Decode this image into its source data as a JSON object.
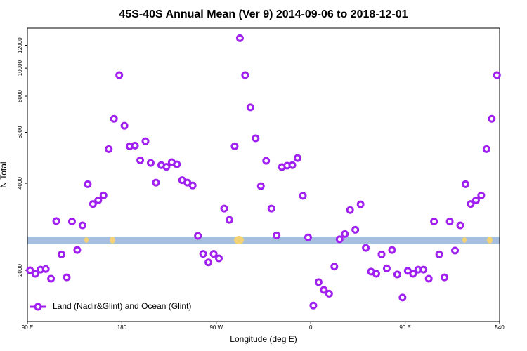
{
  "chart_data": {
    "type": "scatter",
    "title": "45S-40S Annual Mean (Ver 9)   2014-09-06 to 2018-12-01",
    "x_label": "Longitude (deg E)",
    "y_label": "N Total",
    "log_y": true,
    "xlim": [
      90,
      540
    ],
    "xticks": [
      {
        "value": 90,
        "label": "90 E"
      },
      180,
      {
        "value": 270,
        "label": "90 W"
      },
      {
        "value": 360,
        "label": "0"
      },
      {
        "value": 450,
        "label": "90 E"
      },
      540
    ],
    "ylim": [
      1330,
      13760
    ],
    "yticks": [
      2000,
      4000,
      6000,
      8000,
      10000,
      12000
    ],
    "legend_position": "lower left",
    "series": [
      {
        "name": "Land (Nadir&Glint) and Ocean (Glint)",
        "color": "#a020f0",
        "x": [
          92.5,
          97.5,
          102.5,
          107.5,
          112.5,
          117.5,
          122.5,
          127.5,
          132.5,
          137.5,
          142.5,
          147.5,
          152.5,
          157.5,
          162.5,
          167.5,
          172.5,
          177.5,
          182.5,
          187.5,
          192.5,
          197.5,
          202.5,
          207.5,
          212.5,
          217.5,
          222.5,
          227.5,
          232.5,
          237.5,
          242.5,
          247.5,
          252.5,
          257.5,
          262.5,
          267.5,
          272.5,
          277.5,
          282.5,
          287.5,
          292.5,
          297.5,
          302.5,
          307.5,
          312.5,
          317.5,
          322.5,
          327.5,
          332.5,
          337.5,
          342.5,
          347.5,
          352.5,
          357.5,
          362.5,
          367.5,
          372.5,
          377.5,
          382.5,
          387.5,
          392.5,
          397.5,
          402.5,
          407.5,
          412.5,
          417.5,
          422.5,
          427.5,
          432.5,
          437.5,
          442.5,
          447.5,
          452.5,
          457.5,
          462.5,
          467.5,
          472.5,
          477.5,
          482.5,
          487.5,
          492.5,
          497.5,
          502.5,
          507.5,
          512.5,
          517.5,
          522.5,
          527.5,
          532.5,
          537.5
        ],
        "values": [
          2000,
          1945,
          2010,
          2020,
          1870,
          2960,
          2270,
          1890,
          2950,
          2350,
          2860,
          3970,
          3390,
          3490,
          3630,
          5250,
          6680,
          9460,
          6320,
          5370,
          5400,
          4800,
          5590,
          4700,
          4020,
          4620,
          4560,
          4730,
          4650,
          4100,
          4020,
          3930,
          2630,
          2280,
          2130,
          2280,
          2200,
          3270,
          2990,
          5370,
          12700,
          9460,
          7320,
          5720,
          3910,
          4780,
          3270,
          2640,
          4550,
          4600,
          4620,
          4890,
          3620,
          2600,
          1510,
          1820,
          1710,
          1660,
          2060,
          2560,
          2670,
          3230,
          2760,
          3380,
          2390,
          1980,
          1945,
          2270,
          2030,
          2350,
          1935,
          1610,
          1990,
          1945,
          2010,
          2010,
          1870,
          2950,
          2270,
          1890,
          2950,
          2340,
          2860,
          3970,
          3390,
          3490,
          3630,
          5250,
          6680,
          9460
        ]
      }
    ]
  }
}
